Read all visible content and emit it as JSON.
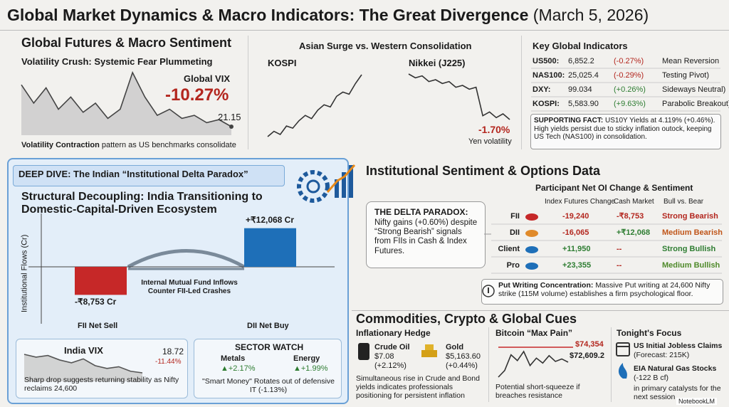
{
  "header": {
    "title": "Global Market Dynamics & Macro Indicators: The Great Divergence",
    "date": "(March 5, 2026)"
  },
  "futures": {
    "heading": "Global Futures & Macro Sentiment",
    "subtitle": "Volatility Crush: Systemic Fear Plummeting",
    "label": "Global VIX",
    "change": "-10.27%",
    "last": "21.15",
    "series": [
      28,
      25,
      27.5,
      24,
      26,
      23.5,
      25,
      22.5,
      24,
      30,
      26,
      23,
      24,
      22.5,
      23,
      21.8,
      22.3,
      21.15
    ],
    "caption_bold": "Volatility Contraction",
    "caption": "pattern as US benchmarks consolidate"
  },
  "asia": {
    "title": "Asian Surge vs. Western Consolidation",
    "kospi": {
      "label": "KOSPI",
      "series": [
        5000,
        5050,
        5020,
        5100,
        5080,
        5150,
        5200,
        5170,
        5250,
        5300,
        5280,
        5380,
        5420,
        5400,
        5500,
        5583.9
      ]
    },
    "nikkei": {
      "label": "Nikkei (J225)",
      "change": "-1.70%",
      "note": "Yen volatility",
      "series": [
        55000,
        54800,
        54900,
        54600,
        54700,
        54500,
        54600,
        54300,
        54400,
        54200,
        54300,
        52800,
        53000,
        52700,
        52900,
        52600
      ]
    }
  },
  "indicators": {
    "title": "Key Global Indicators",
    "rows": [
      {
        "name": "US500:",
        "value": "6,852.2",
        "change": "(-0.27%)",
        "note": "Mean Reversion",
        "color": "#b3261e"
      },
      {
        "name": "NAS100:",
        "value": "25,025.4",
        "change": "(-0.29%)",
        "note": "Testing Pivot)",
        "color": "#b3261e"
      },
      {
        "name": "DXY:",
        "value": "99.034",
        "change": "(+0.26%)",
        "note": "Sideways Neutral)",
        "color": "#2e7d32"
      },
      {
        "name": "KOSPI:",
        "value": "5,583.90",
        "change": "(+9.63%)",
        "note": "Parabolic Breakout)",
        "color": "#2e7d32"
      }
    ],
    "fact_label": "SUPPORTING FACT:",
    "fact": "US10Y Yields at 4.119% (+0.46%). High yields persist due to sticky inflation outock, keeping US Tech (NAS100) in consolidation."
  },
  "india": {
    "banner": "DEEP DIVE: The Indian “Institutional Delta Paradox”",
    "title": "Structural Decoupling: India Transitioning to Domestic-Capital-Driven Ecosystem",
    "axis_label": "Institutional Flows (Cr)",
    "bars": [
      {
        "name": "FII Net Sell",
        "value": -8753,
        "label": "-₹8,753 Cr",
        "color": "#c62828"
      },
      {
        "name": "DII Net Buy",
        "value": 12068,
        "label": "+₹12,068 Cr",
        "color": "#1e6fb8"
      }
    ],
    "bridge": "Internal Mutual Fund Inflows Counter FII-Led Crashes",
    "vix": {
      "label": "India VIX",
      "value": "18.72",
      "change": "-11.44%",
      "series": [
        22,
        21.5,
        21.8,
        21,
        20.5,
        21.2,
        20,
        19.5,
        19.8,
        19,
        18.72
      ],
      "caption": "Sharp drop suggests returning stability as Nifty reclaims 24,600"
    },
    "sector": {
      "title": "SECTOR WATCH",
      "items": [
        {
          "name": "Metals",
          "change": "▲+2.17%"
        },
        {
          "name": "Energy",
          "change": "▲+1.99%"
        }
      ],
      "caption": "\"Smart Money\" Rotates out of defensive IT (-1.13%)"
    }
  },
  "options": {
    "title": "Institutional Sentiment & Options Data",
    "paradox_title": "THE DELTA PARADOX:",
    "paradox_text": "Nifty gains (+0.60%) despite “Strong Bearish” signals from FIIs in Cash & Index Futures.",
    "table_title": "Participant Net OI Change & Sentiment",
    "columns": [
      "Index Futures Change",
      "Cash Market",
      "Bull vs. Bear"
    ],
    "rows": [
      {
        "name": "FII",
        "futures": "-19,240",
        "cash": "-₹8,753",
        "sentiment": "Strong Bearish",
        "color": "#b3261e",
        "icon": "bear"
      },
      {
        "name": "DII",
        "futures": "-16,065",
        "cash": "+₹12,068",
        "sentiment": "Medium Bearish",
        "color": "#c0561a",
        "icon": "bear"
      },
      {
        "name": "Client",
        "futures": "+11,950",
        "cash": "--",
        "sentiment": "Strong Bullish",
        "color": "#2e7d32",
        "icon": "bull"
      },
      {
        "name": "Pro",
        "futures": "+23,355",
        "cash": "--",
        "sentiment": "Medium Bullish",
        "color": "#4f8a2a",
        "icon": "bull"
      }
    ],
    "put_label": "Put Writing Concentration:",
    "put_text": "Massive Put writing at 24,600 Nifty strike (115M volume) establishes a firm psychological floor."
  },
  "commodities": {
    "title": "Commodities, Crypto & Global Cues",
    "hedge": {
      "title": "Inflationary Hedge",
      "items": [
        {
          "name": "Crude Oil",
          "price": "$7.08",
          "change": "(+2.12%)"
        },
        {
          "name": "Gold",
          "price": "$5,163.60",
          "change": "(+0.44%)"
        }
      ],
      "caption": "Simultaneous rise in Crude and Bond yields indicates professionals positioning for persistent inflation"
    },
    "bitcoin": {
      "title": "Bitcoin “Max Pain”",
      "resistance": 74354,
      "resistance_label": "$74,354",
      "last_label": "$72,609.2",
      "series": [
        70800,
        71600,
        73500,
        72800,
        73900,
        72200,
        73100,
        72500,
        73400,
        72700,
        73000,
        72609.2
      ],
      "caption": "Potential short-squeeze if breaches resistance"
    },
    "focus": {
      "title": "Tonight's Focus",
      "items": [
        {
          "title": "US Initial Jobless Claims",
          "detail": "(Forecast: 215K)"
        },
        {
          "title": "EIA Natural Gas Stocks",
          "detail": "(-122 B cf)"
        }
      ],
      "caption": "in primary catalysts for the next session"
    }
  },
  "footer": "NotebookLM"
}
